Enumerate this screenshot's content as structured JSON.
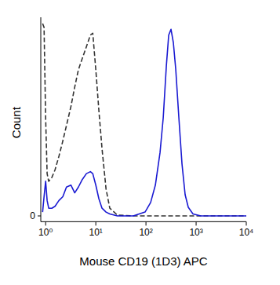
{
  "chart_data": {
    "type": "line",
    "x_label": "Mouse CD19 (1D3) APC",
    "y_label": "Count",
    "log": "x",
    "x": [
      0.87,
      0.93,
      1,
      1.07,
      1.15,
      1.33,
      1.54,
      1.84,
      2.2,
      2.6,
      3.2,
      3.8,
      4.5,
      5.4,
      6.5,
      7.8,
      8.7,
      10,
      11.5,
      13.3,
      16,
      19,
      27,
      56,
      96,
      124,
      154,
      191,
      221,
      255,
      284,
      316,
      352,
      393,
      453,
      523,
      604,
      698,
      866,
      1240,
      2940,
      10000
    ],
    "series": [
      {
        "color": "#333333",
        "line_style": "dashed",
        "values": [
          100,
          98,
          51,
          22,
          18,
          20,
          24,
          31,
          39,
          47,
          57,
          67,
          76,
          82,
          88,
          94,
          95,
          76,
          55,
          35,
          14,
          4,
          0.4,
          0,
          0,
          0,
          0,
          0,
          0,
          0,
          0,
          0,
          0,
          0,
          0,
          0,
          0,
          0,
          0,
          0,
          0,
          0
        ]
      },
      {
        "color": "#1a1ad2",
        "line_style": "solid",
        "values": [
          2,
          10,
          18,
          8,
          4,
          4,
          5,
          8,
          10,
          15,
          16,
          12,
          15,
          19,
          22,
          23,
          22,
          16,
          9,
          4,
          2,
          1,
          0,
          0,
          2,
          7,
          16,
          33,
          51,
          78,
          94,
          97,
          90,
          76,
          51,
          27,
          11,
          4.5,
          1,
          0,
          0,
          0
        ]
      }
    ],
    "xlim": [
      0.8,
      10000
    ],
    "xticks": [
      {
        "value": 1,
        "label": "10⁰"
      },
      {
        "value": 10,
        "label": "10¹"
      },
      {
        "value": 100,
        "label": "10²"
      },
      {
        "value": 1000,
        "label": "10³"
      },
      {
        "value": 10000,
        "label": "10⁴"
      }
    ],
    "ylim": [
      -3,
      100
    ],
    "yticks": [
      0
    ],
    "grid": false
  }
}
